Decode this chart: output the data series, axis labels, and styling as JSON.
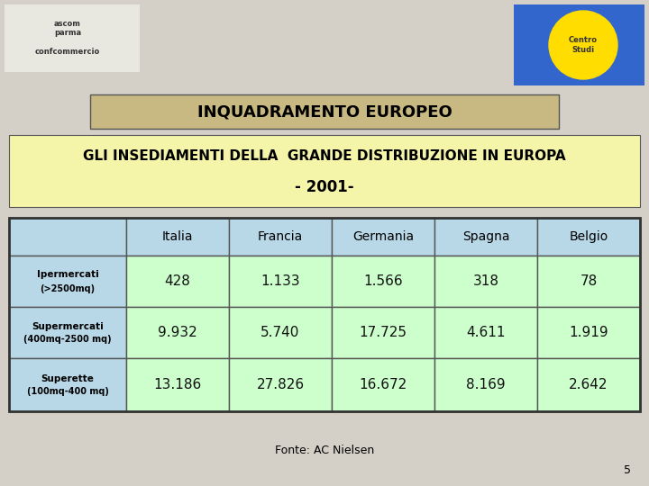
{
  "title1": "INQUADRAMENTO EUROPEO",
  "title2": "GLI INSEDIAMENTI DELLA  GRANDE DISTRIBUZIONE IN EUROPA",
  "title3": "- 2001-",
  "columns": [
    "Italia",
    "Francia",
    "Germania",
    "Spagna",
    "Belgio"
  ],
  "rows": [
    {
      "label_line1": "Ipermercati",
      "label_line2": "(>2500mq)",
      "values": [
        "428",
        "1.133",
        "1.566",
        "318",
        "78"
      ]
    },
    {
      "label_line1": "Supermercati",
      "label_line2": "(400mq-2500 mq)",
      "values": [
        "9.932",
        "5.740",
        "17.725",
        "4.611",
        "1.919"
      ]
    },
    {
      "label_line1": "Superette",
      "label_line2": "(100mq-400 mq)",
      "values": [
        "13.186",
        "27.826",
        "16.672",
        "8.169",
        "2.642"
      ]
    }
  ],
  "footnote": "Fonte: AC Nielsen",
  "page_number": "5",
  "bg_color": "#d4d0c8",
  "title1_bg": "#c8b882",
  "title2_bg": "#f5f5aa",
  "header_bg": "#b8d8e8",
  "row_label_bg": "#b8d8e8",
  "data_bg": "#ccffcc",
  "border_color": "#555555",
  "title1_text_color": "#000000",
  "title2_text_color": "#000000",
  "header_text_color": "#000000",
  "data_text_color": "#111111",
  "table_border_color": "#333333"
}
